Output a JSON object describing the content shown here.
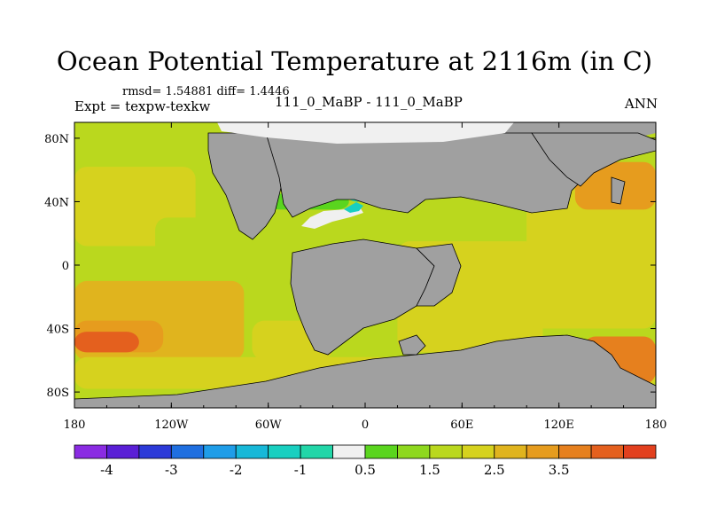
{
  "chart_data": {
    "type": "heatmap",
    "title": "Ocean Potential Temperature at 2116m (in C)",
    "stats": "rmsd= 1.54881 diff= 1.4446",
    "experiment": "Expt = texpw-texkw",
    "cases": "111_0_MaBP - 111_0_MaBP",
    "season": "ANN",
    "x_ticks": [
      "180",
      "120W",
      "60W",
      "0",
      "60E",
      "120E",
      "180"
    ],
    "x_tick_values": [
      -180,
      -120,
      -60,
      0,
      60,
      120,
      180
    ],
    "y_ticks": [
      "80N",
      "40N",
      "0",
      "40S",
      "80S"
    ],
    "y_tick_values": [
      80,
      40,
      0,
      -40,
      -80
    ],
    "xlim": [
      -180,
      180
    ],
    "ylim": [
      -90,
      90
    ],
    "colorbar": {
      "levels": [
        -4.5,
        -4,
        -3.5,
        -3,
        -2.5,
        -2,
        -1.5,
        -1,
        -0.5,
        0,
        0.5,
        1,
        1.5,
        2,
        2.5,
        3,
        3.5,
        4
      ],
      "colors": [
        "#8a2be2",
        "#5a1fd6",
        "#2c3ad8",
        "#1f6fe0",
        "#1f9de8",
        "#17b8d8",
        "#19cfc0",
        "#22d6a8",
        "#f0f0f0",
        "#5ad51e",
        "#8ed81e",
        "#bad81e",
        "#d6d21e",
        "#e0b41e",
        "#e69c1e",
        "#e6801e",
        "#e4601e",
        "#e2401e"
      ],
      "labels": [
        "-4",
        "-3",
        "-2",
        "-1",
        "0.5",
        "1.5",
        "2.5",
        "3.5"
      ],
      "label_values": [
        -4,
        -3,
        -2,
        -1,
        0.5,
        1.5,
        2.5,
        3.5
      ]
    },
    "land_color": "#a0a0a0",
    "field_regions": [
      {
        "name": "n-pacific",
        "lon": [
          -180,
          -105
        ],
        "lat": [
          12,
          62
        ],
        "value": 1.5
      },
      {
        "name": "e-pacific-north",
        "lon": [
          -130,
          -70
        ],
        "lat": [
          0,
          30
        ],
        "value": 1.3
      },
      {
        "name": "equatorial-pacific",
        "lon": [
          -180,
          -70
        ],
        "lat": [
          -10,
          12
        ],
        "value": 1.4
      },
      {
        "name": "south-pacific",
        "lon": [
          -180,
          -75
        ],
        "lat": [
          -60,
          -10
        ],
        "value": 2.2
      },
      {
        "name": "sw-pacific-warm",
        "lon": [
          -180,
          -125
        ],
        "lat": [
          -55,
          -35
        ],
        "value": 2.8
      },
      {
        "name": "sw-pacific-core",
        "lon": [
          -180,
          -140
        ],
        "lat": [
          -55,
          -42
        ],
        "value": 3.5
      },
      {
        "name": "southern-ocean",
        "lon": [
          -180,
          180
        ],
        "lat": [
          -78,
          -58
        ],
        "value": 1.6
      },
      {
        "name": "atlantic-tethys",
        "lon": [
          -75,
          35
        ],
        "lat": [
          -10,
          40
        ],
        "value": 1.1
      },
      {
        "name": "south-atlantic",
        "lon": [
          -70,
          -20
        ],
        "lat": [
          -60,
          -35
        ],
        "value": 1.5
      },
      {
        "name": "indian-ocean",
        "lon": [
          20,
          110
        ],
        "lat": [
          -55,
          15
        ],
        "value": 1.8
      },
      {
        "name": "w-pacific",
        "lon": [
          100,
          180
        ],
        "lat": [
          -40,
          60
        ],
        "value": 1.6
      },
      {
        "name": "nw-pacific-warm",
        "lon": [
          130,
          180
        ],
        "lat": [
          35,
          65
        ],
        "value": 2.5
      },
      {
        "name": "tasman-warm",
        "lon": [
          135,
          180
        ],
        "lat": [
          -75,
          -45
        ],
        "value": 3.2
      },
      {
        "name": "arctic-fringe",
        "lon": [
          -60,
          -10
        ],
        "lat": [
          35,
          45
        ],
        "value": 0.2
      },
      {
        "name": "arctic-fringe-blue",
        "lon": [
          -10,
          0
        ],
        "lat": [
          40,
          45
        ],
        "value": -0.8
      }
    ]
  }
}
